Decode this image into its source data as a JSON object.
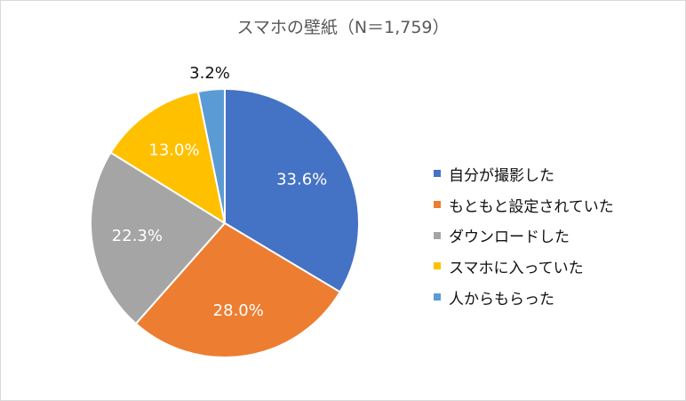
{
  "chart_data": {
    "type": "pie",
    "title": "スマホの壁紙（N＝1,759）",
    "categories": [
      "自分が撮影した",
      "もともと設定されていた",
      "ダウンロードした",
      "スマホに入っていた",
      "人からもらった"
    ],
    "values": [
      33.6,
      28.0,
      22.3,
      13.0,
      3.2
    ],
    "labels": [
      "33.6%",
      "28.0%",
      "22.3%",
      "13.0%",
      "3.2%"
    ],
    "colors": [
      "#4472c4",
      "#ed7d31",
      "#a5a5a5",
      "#ffc000",
      "#5b9bd5"
    ],
    "legend_position": "right"
  }
}
